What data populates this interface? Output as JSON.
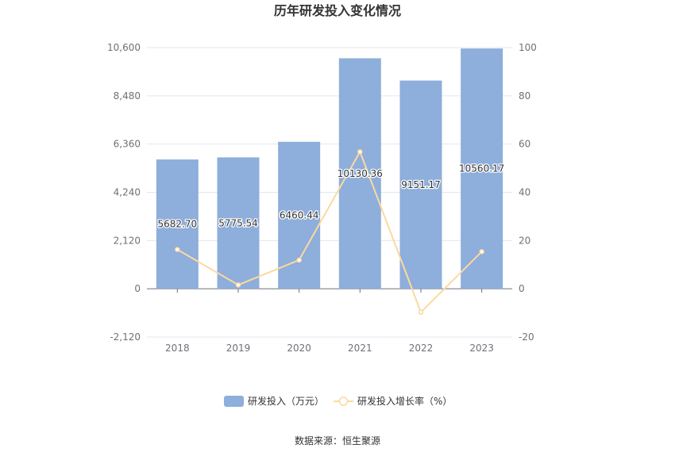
{
  "chart_data": {
    "type": "bar",
    "title": "历年研发投入变化情况",
    "source": "数据来源：恒生聚源",
    "categories": [
      "2018",
      "2019",
      "2020",
      "2021",
      "2022",
      "2023"
    ],
    "series": [
      {
        "name": "研发投入（万元）",
        "type": "bar",
        "axis": "left",
        "color": "#8eaedb",
        "values": [
          5682.7,
          5775.54,
          6460.44,
          10130.36,
          9151.17,
          10560.17
        ],
        "labels": [
          "5682.70",
          "5775.54",
          "6460.44",
          "10130.36",
          "9151.17",
          "10560.17"
        ]
      },
      {
        "name": "研发投入增长率（%）",
        "type": "line",
        "axis": "right",
        "color": "#fdd8a0",
        "values": [
          16.3,
          1.6,
          11.9,
          56.8,
          -9.7,
          15.4
        ]
      }
    ],
    "y_left": {
      "min": -2120,
      "max": 10600,
      "ticks": [
        -2120,
        0,
        2120,
        4240,
        6360,
        8480,
        10600
      ],
      "tick_labels": [
        "-2,120",
        "0",
        "2,120",
        "4,240",
        "6,360",
        "8,480",
        "10,600"
      ]
    },
    "y_right": {
      "min": -20,
      "max": 100,
      "ticks": [
        -20,
        0,
        20,
        40,
        60,
        80,
        100
      ],
      "tick_labels": [
        "-20",
        "0",
        "20",
        "40",
        "60",
        "80",
        "100"
      ]
    },
    "grid": true,
    "legend_position": "bottom-center"
  }
}
